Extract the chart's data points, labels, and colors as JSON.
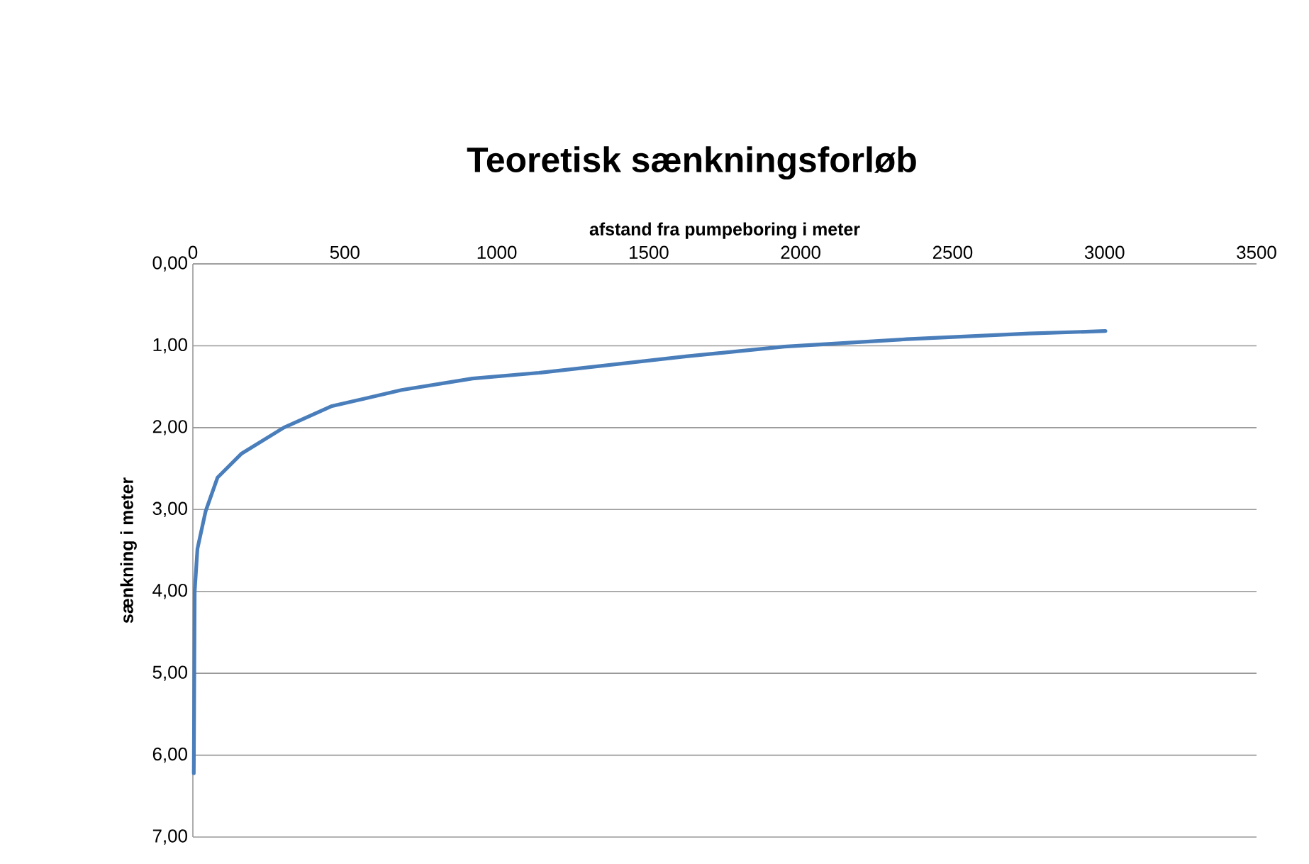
{
  "chart_data": {
    "type": "line",
    "title": "Teoretisk sænkningsforløb",
    "xlabel": "afstand fra pumpeboring i meter",
    "ylabel": "sænkning i meter",
    "xlim": [
      0,
      3500
    ],
    "xticks": [
      0,
      500,
      1000,
      1500,
      2000,
      2500,
      3000,
      3500
    ],
    "ylim": [
      7,
      0
    ],
    "yticks": [
      {
        "value": 0,
        "label": "0,00"
      },
      {
        "value": 1,
        "label": "1,00"
      },
      {
        "value": 2,
        "label": "2,00"
      },
      {
        "value": 3,
        "label": "3,00"
      },
      {
        "value": 4,
        "label": "4,00"
      },
      {
        "value": 5,
        "label": "5,00"
      },
      {
        "value": 6,
        "label": "6,00"
      },
      {
        "value": 7,
        "label": "7,00"
      }
    ],
    "grid": "y",
    "marker": "none",
    "line_style": "solid",
    "series": [
      {
        "color": "#4a7ebb",
        "x": [
          3,
          6,
          15,
          42,
          81,
          159,
          299,
          455,
          687,
          920,
          1139,
          1623,
          1946,
          2349,
          2753,
          3003
        ],
        "values": [
          6.22,
          4.0,
          3.48,
          3.02,
          2.61,
          2.32,
          2.0,
          1.74,
          1.54,
          1.4,
          1.33,
          1.13,
          1.01,
          0.92,
          0.85,
          0.82
        ]
      }
    ]
  }
}
